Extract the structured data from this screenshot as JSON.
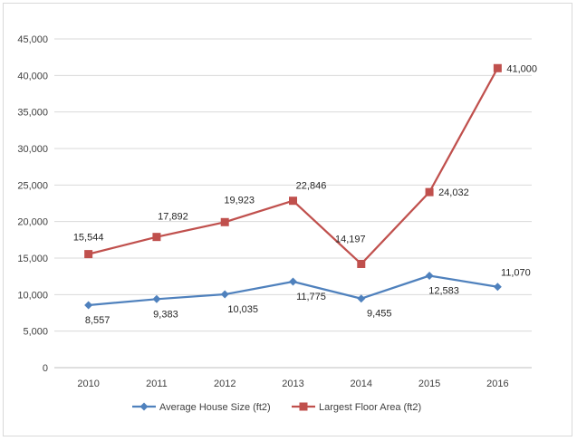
{
  "chart_data": {
    "type": "line",
    "categories": [
      "2010",
      "2011",
      "2012",
      "2013",
      "2014",
      "2015",
      "2016"
    ],
    "series": [
      {
        "name": "Average House Size (ft2)",
        "color": "#4f81bd",
        "marker": "diamond",
        "values": [
          8557,
          9383,
          10035,
          11775,
          9455,
          12583,
          11070
        ],
        "labels": [
          "8,557",
          "9,383",
          "10,035",
          "11,775",
          "9,455",
          "12,583",
          "11,070"
        ]
      },
      {
        "name": "Largest Floor Area (ft2)",
        "color": "#c0504d",
        "marker": "square",
        "values": [
          15544,
          17892,
          19923,
          22846,
          14197,
          24032,
          41000
        ],
        "labels": [
          "15,544",
          "17,892",
          "19,923",
          "22,846",
          "14,197",
          "24,032",
          "41,000"
        ]
      }
    ],
    "ylim": [
      0,
      45000
    ],
    "yticks": [
      "0",
      "5,000",
      "10,000",
      "15,000",
      "20,000",
      "25,000",
      "30,000",
      "35,000",
      "40,000",
      "45,000"
    ],
    "grid": true,
    "legend": "bottom"
  }
}
